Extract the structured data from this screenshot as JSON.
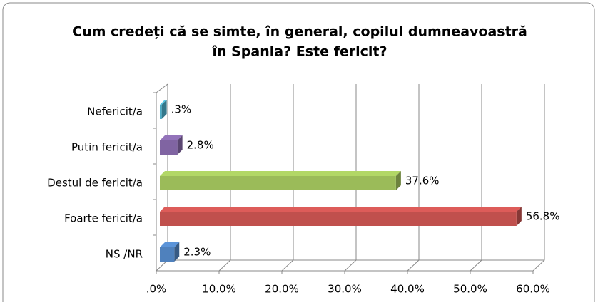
{
  "chart_data": {
    "type": "bar3d",
    "title": [
      "Cum credeți că se simte, în general, copilul dumneavoastră",
      "în Spania? Este fericit?"
    ],
    "categories": [
      "Nefericit/a",
      "Putin fericit/a",
      "Destul de fericit/a",
      "Foarte fericit/a",
      "NS /NR"
    ],
    "values": [
      0.3,
      2.8,
      37.6,
      56.8,
      2.3
    ],
    "value_labels": [
      ".3%",
      "2.8%",
      "37.6%",
      "56.8%",
      "2.3%"
    ],
    "colors": [
      "#4bacc6",
      "#8064a2",
      "#9bbb59",
      "#c0504d",
      "#4f81bd"
    ],
    "xlim": [
      0,
      60
    ],
    "xticks": [
      {
        "value": 0,
        "label": ".0%"
      },
      {
        "value": 10,
        "label": "10.0%"
      },
      {
        "value": 20,
        "label": "20.0%"
      },
      {
        "value": 30,
        "label": "30.0%"
      },
      {
        "value": 40,
        "label": "40.0%"
      },
      {
        "value": 50,
        "label": "50.0%"
      },
      {
        "value": 60,
        "label": "60.0%"
      }
    ],
    "grid": true
  }
}
